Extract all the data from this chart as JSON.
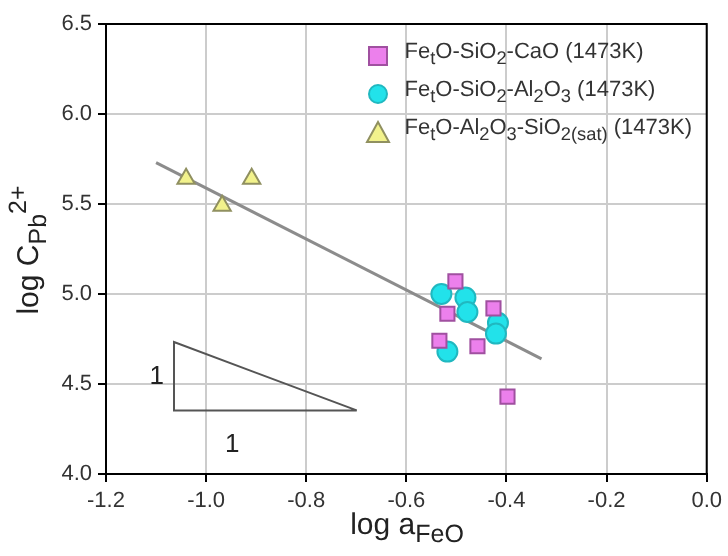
{
  "chart_data": {
    "type": "scatter",
    "xlabel": "log a$_{FeO}$",
    "ylabel": "log C$_{Pb}$$^{2+}$",
    "xlim": [
      -1.2,
      0.0
    ],
    "xticks": [
      {
        "value": -1.2,
        "label": "-1.2"
      },
      {
        "value": -1.0,
        "label": "-1.0"
      },
      {
        "value": -0.8,
        "label": "-0.8"
      },
      {
        "value": -0.6,
        "label": "-0.6"
      },
      {
        "value": -0.4,
        "label": "-0.4"
      },
      {
        "value": -0.2,
        "label": "-0.2"
      },
      {
        "value": 0,
        "label": "0.0"
      }
    ],
    "ylim": [
      4.0,
      6.5
    ],
    "yticks": [
      {
        "value": 4,
        "label": "4.0"
      },
      {
        "value": 4.5,
        "label": "4.5"
      },
      {
        "value": 5,
        "label": "5.0"
      },
      {
        "value": 5.5,
        "label": "5.5"
      },
      {
        "value": 6,
        "label": "6.0"
      },
      {
        "value": 6.5,
        "label": "6.5"
      }
    ],
    "grid": true,
    "legend": "top right",
    "annotations": [
      "1",
      "1"
    ],
    "series": [
      {
        "name": "Fe$_{t}$O-SiO$_{2}$-CaO (1473K)",
        "color": "#ec80ec",
        "marker": "square",
        "x": [
          -0.502,
          -0.518,
          -0.426,
          -0.534,
          -0.458,
          -0.398
        ],
        "values": [
          5.07,
          4.89,
          4.92,
          4.74,
          4.71,
          4.43
        ]
      },
      {
        "name": "Fe$_{t}$O-SiO$_{2}$-Al$_{2}$O$_{3}$ (1473K)",
        "color": "#22e2ea",
        "marker": "circle",
        "x": [
          -0.53,
          -0.482,
          -0.478,
          -0.417,
          -0.421,
          -0.518
        ],
        "values": [
          5.0,
          4.98,
          4.9,
          4.84,
          4.78,
          4.68
        ]
      },
      {
        "name": "Fe$_{t}$O-Al$_{2}$O$_{3}$-SiO$_{2(sat)}$ (1473K)",
        "color": "#f2f28c",
        "marker": "triangle",
        "x": [
          -1.04,
          -0.968,
          -0.909
        ],
        "values": [
          5.64,
          5.49,
          5.64
        ]
      },
      {
        "type": "line",
        "color": "#8c8c8c",
        "marker": "none",
        "x": [
          -1.1,
          -0.33
        ],
        "values": [
          5.73,
          4.64
        ]
      }
    ]
  }
}
